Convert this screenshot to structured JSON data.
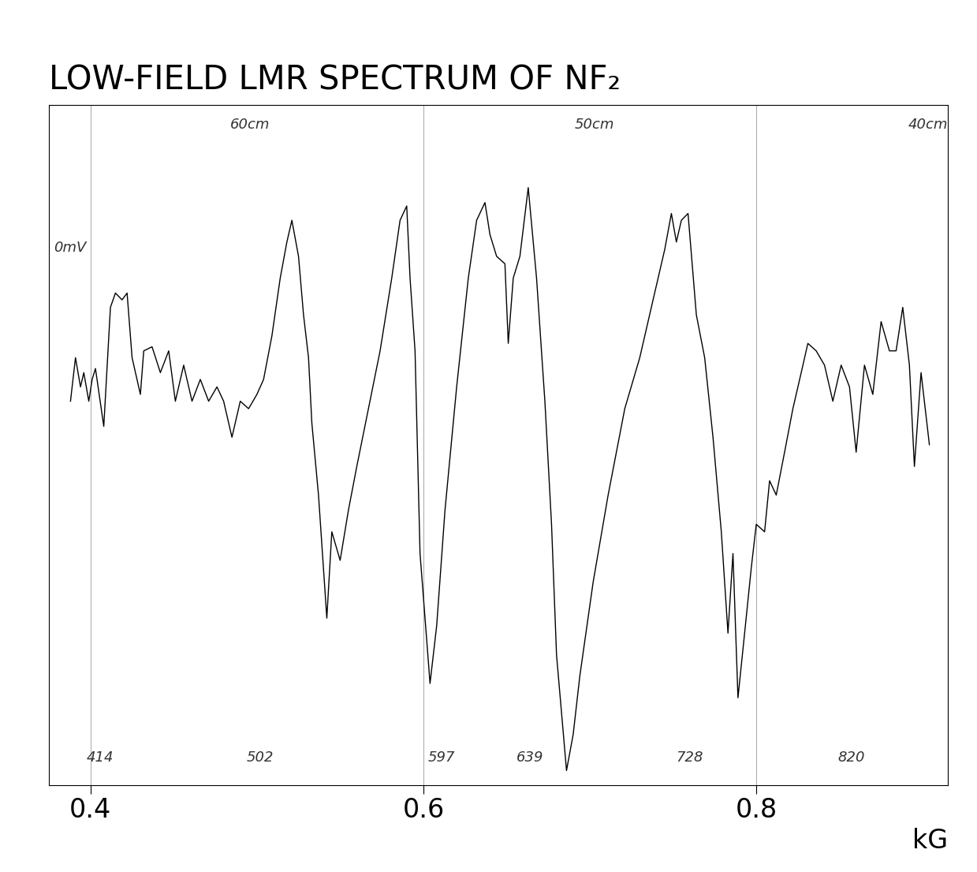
{
  "chart_data": {
    "type": "line",
    "title": "LOW-FIELD LMR SPECTRUM OF NF₂",
    "x_label": "kG",
    "x": [
      0.388,
      0.391,
      0.394,
      0.396,
      0.399,
      0.401,
      0.403,
      0.408,
      0.412,
      0.415,
      0.419,
      0.422,
      0.425,
      0.43,
      0.432,
      0.437,
      0.442,
      0.447,
      0.451,
      0.456,
      0.461,
      0.466,
      0.471,
      0.476,
      0.48,
      0.485,
      0.49,
      0.495,
      0.5,
      0.504,
      0.509,
      0.514,
      0.518,
      0.521,
      0.525,
      0.528,
      0.531,
      0.533,
      0.537,
      0.542,
      0.545,
      0.55,
      0.555,
      0.56,
      0.567,
      0.574,
      0.581,
      0.586,
      0.59,
      0.592,
      0.595,
      0.598,
      0.602,
      0.604,
      0.608,
      0.613,
      0.62,
      0.627,
      0.632,
      0.637,
      0.64,
      0.644,
      0.649,
      0.651,
      0.654,
      0.658,
      0.663,
      0.668,
      0.673,
      0.677,
      0.68,
      0.683,
      0.686,
      0.69,
      0.694,
      0.702,
      0.711,
      0.721,
      0.73,
      0.738,
      0.745,
      0.749,
      0.752,
      0.755,
      0.759,
      0.764,
      0.769,
      0.774,
      0.779,
      0.783,
      0.786,
      0.789,
      0.793,
      0.797,
      0.8,
      0.805,
      0.808,
      0.812,
      0.817,
      0.822,
      0.827,
      0.831,
      0.836,
      0.841,
      0.846,
      0.851,
      0.856,
      0.86,
      0.865,
      0.87,
      0.875,
      0.88,
      0.884,
      0.888,
      0.892,
      0.895,
      0.899,
      0.904
    ],
    "values": [
      56.4,
      62.8,
      58.5,
      60.6,
      56.4,
      59.6,
      61.2,
      52.7,
      70.2,
      72.3,
      71.3,
      72.3,
      62.8,
      57.4,
      63.8,
      64.4,
      60.6,
      63.8,
      56.4,
      61.7,
      56.4,
      59.6,
      56.4,
      58.5,
      56.4,
      51.1,
      56.4,
      55.3,
      57.4,
      59.6,
      66.0,
      74.5,
      79.8,
      83.0,
      77.7,
      69.1,
      62.8,
      53.2,
      42.6,
      24.5,
      37.2,
      33.0,
      40.4,
      46.8,
      55.3,
      63.8,
      74.5,
      83.0,
      85.1,
      74.5,
      63.8,
      34.0,
      21.3,
      14.9,
      23.4,
      40.4,
      58.5,
      74.5,
      83.0,
      85.6,
      80.9,
      77.7,
      76.6,
      64.9,
      74.5,
      77.7,
      87.8,
      74.5,
      56.4,
      38.3,
      19.1,
      10.6,
      2.1,
      7.4,
      16.0,
      29.8,
      42.6,
      55.3,
      62.8,
      71.3,
      78.7,
      84.0,
      79.8,
      83.0,
      84.0,
      69.1,
      62.8,
      51.1,
      37.2,
      22.3,
      34.0,
      12.8,
      22.3,
      31.9,
      38.3,
      37.2,
      44.7,
      42.6,
      48.9,
      55.3,
      60.6,
      64.9,
      63.8,
      61.7,
      56.4,
      61.7,
      58.5,
      48.9,
      61.7,
      57.4,
      68.1,
      63.8,
      63.8,
      70.2,
      61.7,
      46.8,
      60.6,
      50.0
    ],
    "color": "#000000",
    "xlim": [
      0.375,
      0.915
    ],
    "xticks": [
      0.4,
      0.6,
      0.8
    ],
    "ylim": [
      0,
      100
    ],
    "yticks": [],
    "tick_labels": "x",
    "grid": true,
    "annotations": [
      {
        "text": "414",
        "x": 0.406,
        "y": 4
      },
      {
        "text": "502",
        "x": 0.502,
        "y": 4
      },
      {
        "text": "597",
        "x": 0.611,
        "y": 4
      },
      {
        "text": "639",
        "x": 0.664,
        "y": 4
      },
      {
        "text": "728",
        "x": 0.76,
        "y": 4
      },
      {
        "text": "820",
        "x": 0.857,
        "y": 4
      },
      {
        "text": "0mV",
        "x": 0.378,
        "y": 79
      },
      {
        "text": "60cm",
        "x": 0.496,
        "y": 97
      },
      {
        "text": "50cm",
        "x": 0.703,
        "y": 97
      },
      {
        "text": "40cm",
        "x": 0.903,
        "y": 97
      }
    ]
  }
}
